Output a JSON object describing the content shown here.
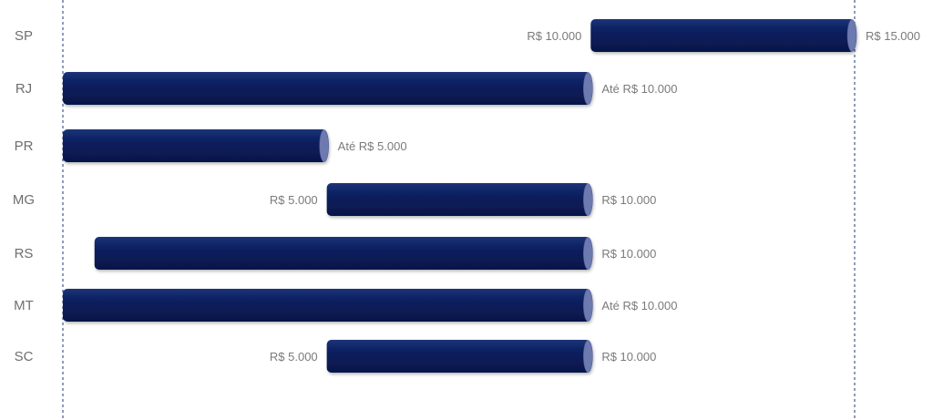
{
  "chart_data": {
    "type": "bar",
    "orientation": "horizontal",
    "bar_style": "floating-range",
    "categories": [
      "SP",
      "RJ",
      "PR",
      "MG",
      "RS",
      "MT",
      "SC"
    ],
    "ranges": [
      {
        "category": "SP",
        "start": 10000,
        "end": 15000,
        "start_label": "R$ 10.000",
        "end_label": "R$ 15.000"
      },
      {
        "category": "RJ",
        "start": 0,
        "end": 10000,
        "start_label": "",
        "end_label": "Até R$ 10.000"
      },
      {
        "category": "PR",
        "start": 0,
        "end": 5000,
        "start_label": "",
        "end_label": "Até R$ 5.000"
      },
      {
        "category": "MG",
        "start": 5000,
        "end": 10000,
        "start_label": "R$ 5.000",
        "end_label": "R$ 10.000"
      },
      {
        "category": "RS",
        "start": 600,
        "end": 10000,
        "start_label": "",
        "end_label": "R$ 10.000"
      },
      {
        "category": "MT",
        "start": 0,
        "end": 10000,
        "start_label": "",
        "end_label": "Até R$ 10.000"
      },
      {
        "category": "SC",
        "start": 5000,
        "end": 10000,
        "start_label": "R$ 5.000",
        "end_label": "R$ 10.000"
      }
    ],
    "xlim": [
      0,
      15000
    ],
    "reference_lines": [
      0,
      15000
    ],
    "reference_line_style": "dashed",
    "grid": false,
    "title": "",
    "xlabel": "",
    "ylabel": "",
    "colors": {
      "bar": "#0a2060",
      "bar_end_cap": "#6d7ab0",
      "reference_line": "#1a3a7a",
      "category_text": "#6e6e6e",
      "value_text": "#7a7a7a"
    }
  }
}
